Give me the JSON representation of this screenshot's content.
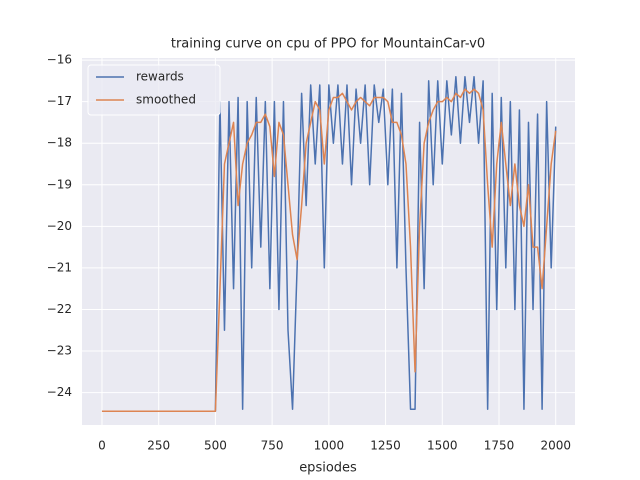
{
  "chart_data": {
    "type": "line",
    "title": "training curve on cpu of PPO for MountainCar-v0",
    "x_label": "epsiodes",
    "x": [
      0,
      20,
      40,
      60,
      80,
      100,
      120,
      140,
      160,
      180,
      200,
      220,
      240,
      260,
      280,
      300,
      320,
      340,
      360,
      380,
      400,
      420,
      440,
      460,
      480,
      500,
      520,
      540,
      560,
      580,
      600,
      620,
      640,
      660,
      680,
      700,
      720,
      740,
      760,
      780,
      800,
      820,
      840,
      860,
      880,
      900,
      920,
      940,
      960,
      980,
      1000,
      1020,
      1040,
      1060,
      1080,
      1100,
      1120,
      1140,
      1160,
      1180,
      1200,
      1220,
      1240,
      1260,
      1280,
      1300,
      1320,
      1340,
      1360,
      1380,
      1400,
      1420,
      1440,
      1460,
      1480,
      1500,
      1520,
      1540,
      1560,
      1580,
      1600,
      1620,
      1640,
      1660,
      1680,
      1700,
      1720,
      1740,
      1760,
      1780,
      1800,
      1820,
      1840,
      1860,
      1880,
      1900,
      1920,
      1940,
      1960,
      1980,
      2000
    ],
    "series": [
      {
        "name": "rewards",
        "color": "#4c72b0",
        "values": [
          -24.45,
          -24.45,
          -24.45,
          -24.45,
          -24.45,
          -24.45,
          -24.45,
          -24.45,
          -24.45,
          -24.45,
          -24.45,
          -24.45,
          -24.45,
          -24.45,
          -24.45,
          -24.45,
          -24.45,
          -24.45,
          -24.45,
          -24.45,
          -24.45,
          -24.45,
          -24.45,
          -24.45,
          -24.45,
          -24.45,
          -17,
          -22.5,
          -17,
          -21.5,
          -16.9,
          -24.4,
          -17,
          -21,
          -16.9,
          -20.5,
          -17,
          -21.5,
          -17,
          -22,
          -17,
          -22.5,
          -24.4,
          -21,
          -16.8,
          -19.5,
          -16.6,
          -18.5,
          -16.6,
          -21,
          -16.6,
          -18,
          -16.6,
          -18.5,
          -16.6,
          -19,
          -16.7,
          -18,
          -16.6,
          -19,
          -16.6,
          -17.5,
          -16.7,
          -19,
          -16.7,
          -21,
          -16.8,
          -21,
          -24.4,
          -24.4,
          -17.5,
          -21.5,
          -16.5,
          -19,
          -16.5,
          -18.5,
          -16.5,
          -17.8,
          -16.4,
          -18,
          -16.4,
          -17.5,
          -16.4,
          -18,
          -16.5,
          -24.4,
          -16.8,
          -22,
          -16.9,
          -21,
          -17,
          -22,
          -17.2,
          -24.4,
          -17.5,
          -22,
          -17.3,
          -24.4,
          -17,
          -21,
          -17.6
        ]
      },
      {
        "name": "smoothed",
        "color": "#dd8452",
        "values": [
          -24.45,
          -24.45,
          -24.45,
          -24.45,
          -24.45,
          -24.45,
          -24.45,
          -24.45,
          -24.45,
          -24.45,
          -24.45,
          -24.45,
          -24.45,
          -24.45,
          -24.45,
          -24.45,
          -24.45,
          -24.45,
          -24.45,
          -24.45,
          -24.45,
          -24.45,
          -24.45,
          -24.45,
          -24.45,
          -24.45,
          -21.5,
          -18.5,
          -18,
          -17.5,
          -19.5,
          -18.5,
          -18,
          -17.8,
          -17.5,
          -17.5,
          -17.3,
          -17.6,
          -18.8,
          -17.5,
          -17.8,
          -19,
          -20.2,
          -20.8,
          -19.5,
          -18,
          -17.5,
          -17,
          -17.2,
          -18.5,
          -17.2,
          -16.9,
          -16.9,
          -16.8,
          -17,
          -17.2,
          -17,
          -16.9,
          -17,
          -17.1,
          -16.9,
          -16.9,
          -16.9,
          -17,
          -17.5,
          -17.5,
          -17.8,
          -18.5,
          -20.5,
          -23.5,
          -20,
          -18,
          -17.5,
          -17.2,
          -17,
          -17,
          -16.9,
          -17,
          -16.8,
          -16.9,
          -16.7,
          -16.8,
          -16.7,
          -16.8,
          -17.2,
          -19,
          -20.5,
          -18.5,
          -17.5,
          -18.5,
          -19.5,
          -18.5,
          -19.5,
          -20,
          -19,
          -20.5,
          -20.5,
          -21.5,
          -20,
          -18.5,
          -17.7
        ]
      }
    ],
    "xlim": [
      -88,
      2085
    ],
    "ylim": [
      -24.78,
      -15.95
    ],
    "xticks": [
      0,
      250,
      500,
      750,
      1000,
      1250,
      1500,
      1750,
      2000
    ],
    "yticks": [
      {
        "value": -16,
        "label": "−16"
      },
      {
        "value": -17,
        "label": "−17"
      },
      {
        "value": -18,
        "label": "−18"
      },
      {
        "value": -19,
        "label": "−19"
      },
      {
        "value": -20,
        "label": "−20"
      },
      {
        "value": -21,
        "label": "−21"
      },
      {
        "value": -22,
        "label": "−22"
      },
      {
        "value": -23,
        "label": "−23"
      },
      {
        "value": -24,
        "label": "−24"
      }
    ],
    "grid": true,
    "legend": "upper left"
  }
}
